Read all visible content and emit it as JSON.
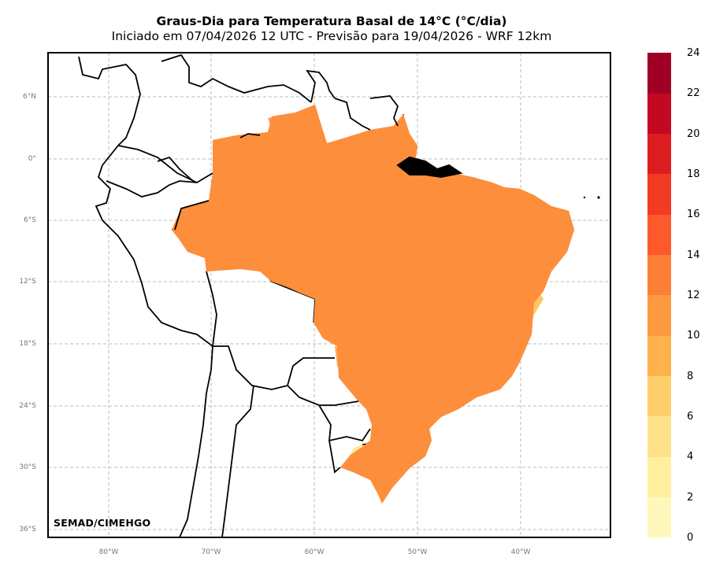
{
  "title": {
    "main": "Graus-Dia para Temperatura Basal de 14°C (°C/dia)",
    "subtitle": "Iniciado em 07/04/2026 12 UTC - Previsão para 19/04/2026 - WRF 12km"
  },
  "credit": "SEMAD/CIMEHGO",
  "lat_ticks": [
    "6°N",
    "0°",
    "6°S",
    "12°S",
    "18°S",
    "24°S",
    "30°S",
    "36°S"
  ],
  "lon_ticks": [
    "80°W",
    "70°W",
    "60°W",
    "50°W",
    "40°W"
  ],
  "colorbar": {
    "labels": [
      "24",
      "22",
      "20",
      "18",
      "16",
      "14",
      "12",
      "10",
      "8",
      "6",
      "4",
      "2",
      "0"
    ],
    "colors": [
      "#fff7bc",
      "#fff0a0",
      "#fee28a",
      "#fece6a",
      "#feb24c",
      "#fd9a3f",
      "#fd7f36",
      "#fc5a2c",
      "#f23b22",
      "#dc1c1e",
      "#c40824",
      "#a10026"
    ]
  },
  "map_colors": {
    "north": "#fd8e3c",
    "amazon_dark": "#f9743a",
    "center": "#fea446",
    "east": "#fec05a",
    "southeast": "#fed685",
    "south": "#ffe6a0",
    "palest": "#fff9dc"
  }
}
